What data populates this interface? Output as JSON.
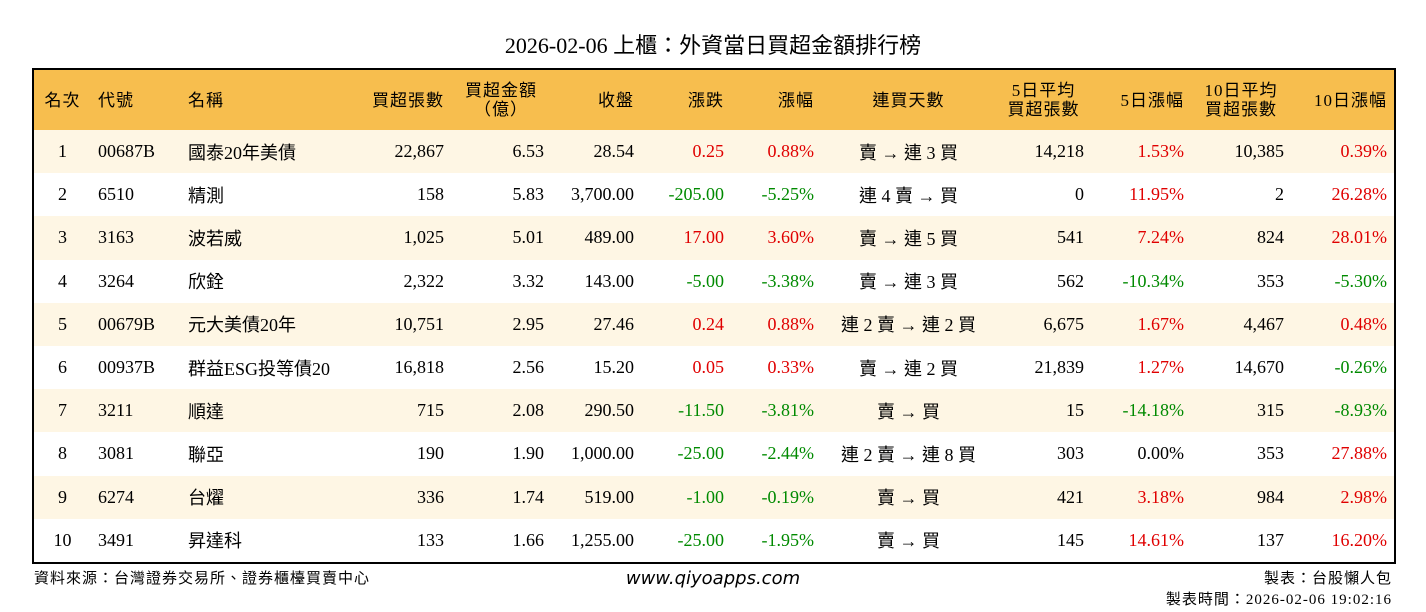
{
  "title": "2026-02-06 上櫃：外資當日買超金額排行榜",
  "table": {
    "header": [
      "名次",
      "代號",
      "名稱",
      "買超張數",
      "買超金額\n（億）",
      "收盤",
      "漲跌",
      "漲幅",
      "連買天數",
      "5日平均\n買超張數",
      "5日漲幅",
      "10日平均\n買超張數",
      "10日漲幅"
    ],
    "rows": [
      [
        "1",
        "00687B",
        "國泰20年美債",
        "22,867",
        "6.53",
        "28.54",
        "0.25",
        "0.88%",
        "賣 → 連 3 買",
        "14,218",
        "1.53%",
        "10,385",
        "0.39%"
      ],
      [
        "2",
        "6510",
        "精測",
        "158",
        "5.83",
        "3,700.00",
        "-205.00",
        "-5.25%",
        "連 4 賣 → 買",
        "0",
        "11.95%",
        "2",
        "26.28%"
      ],
      [
        "3",
        "3163",
        "波若威",
        "1,025",
        "5.01",
        "489.00",
        "17.00",
        "3.60%",
        "賣 → 連 5 買",
        "541",
        "7.24%",
        "824",
        "28.01%"
      ],
      [
        "4",
        "3264",
        "欣銓",
        "2,322",
        "3.32",
        "143.00",
        "-5.00",
        "-3.38%",
        "賣 → 連 3 買",
        "562",
        "-10.34%",
        "353",
        "-5.30%"
      ],
      [
        "5",
        "00679B",
        "元大美債20年",
        "10,751",
        "2.95",
        "27.46",
        "0.24",
        "0.88%",
        "連 2 賣 → 連 2 買",
        "6,675",
        "1.67%",
        "4,467",
        "0.48%"
      ],
      [
        "6",
        "00937B",
        "群益ESG投等債20",
        "16,818",
        "2.56",
        "15.20",
        "0.05",
        "0.33%",
        "賣 → 連 2 買",
        "21,839",
        "1.27%",
        "14,670",
        "-0.26%"
      ],
      [
        "7",
        "3211",
        "順達",
        "715",
        "2.08",
        "290.50",
        "-11.50",
        "-3.81%",
        "賣 → 買",
        "15",
        "-14.18%",
        "315",
        "-8.93%"
      ],
      [
        "8",
        "3081",
        "聯亞",
        "190",
        "1.90",
        "1,000.00",
        "-25.00",
        "-2.44%",
        "連 2 賣 → 連 8 買",
        "303",
        "0.00%",
        "353",
        "27.88%"
      ],
      [
        "9",
        "6274",
        "台燿",
        "336",
        "1.74",
        "519.00",
        "-1.00",
        "-0.19%",
        "賣 → 買",
        "421",
        "3.18%",
        "984",
        "2.98%"
      ],
      [
        "10",
        "3491",
        "昇達科",
        "133",
        "1.66",
        "1,255.00",
        "-25.00",
        "-1.95%",
        "賣 → 買",
        "145",
        "14.61%",
        "137",
        "16.20%"
      ]
    ]
  },
  "footer": {
    "source": "資料來源：台灣證券交易所、證券櫃檯買賣中心",
    "url": "www.qiyoapps.com",
    "maker": "製表：台股懶人包",
    "time": "製表時間：2026-02-06 19:02:16"
  }
}
